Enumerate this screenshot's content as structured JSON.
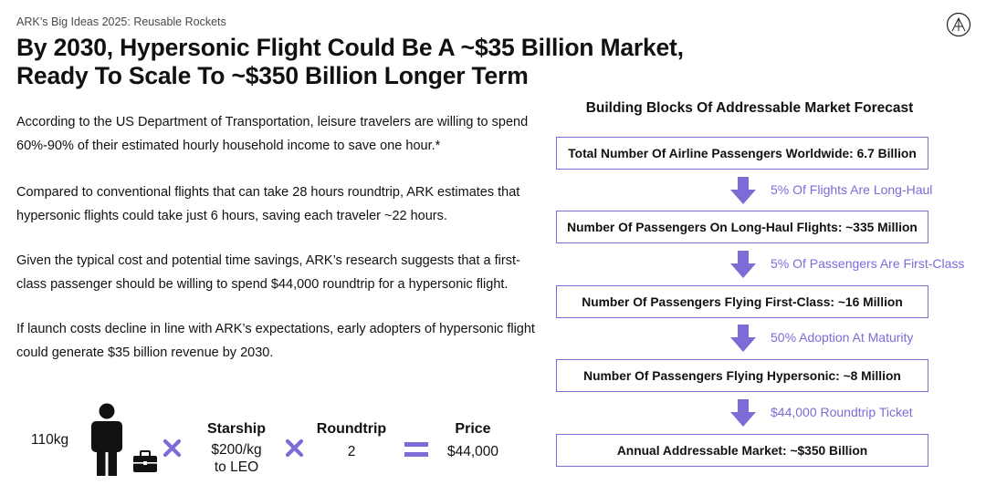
{
  "header": {
    "kicker": "ARK’s Big Ideas 2025: Reusable Rockets",
    "title_line1": "By 2030, Hypersonic Flight Could Be A ~$35 Billion Market,",
    "title_line2": "Ready To Scale To ~$350 Billion Longer Term"
  },
  "logo": {
    "icon": "ark-logo-icon"
  },
  "paragraphs": {
    "p1": "According to the US Department of Transportation, leisure travelers are willing to spend 60%-90% of their estimated hourly household income to save one hour.*",
    "p2": "Compared to conventional flights that can take 28 hours roundtrip, ARK estimates that hypersonic flights could take just 6 hours, saving each traveler ~22 hours.",
    "p3": "Given the typical cost and potential time savings, ARK’s research suggests that a first-class passenger should be willing to spend $44,000 roundtrip for a hypersonic flight.",
    "p4": "If launch costs decline in line with ARK’s expectations, early adopters of hypersonic flight could generate $35 billion revenue by 2030."
  },
  "equation": {
    "weight": "110kg",
    "starship_head": "Starship",
    "starship_line1": "$200/kg",
    "starship_line2": "to LEO",
    "roundtrip_head": "Roundtrip",
    "roundtrip_value": "2",
    "price_head": "Price",
    "price_value": "$44,000",
    "icons": [
      "person-icon",
      "briefcase-icon",
      "multiply-icon",
      "equals-icon"
    ]
  },
  "forecast": {
    "title": "Building Blocks Of Addressable Market Forecast",
    "boxes": [
      "Total Number Of Airline Passengers Worldwide: 6.7 Billion",
      "Number Of Passengers On Long-Haul Flights: ~335 Million",
      "Number Of Passengers Flying First-Class: ~16 Million",
      "Number Of Passengers Flying Hypersonic: ~8 Million",
      "Annual Addressable Market: ~$350 Billion"
    ],
    "steps": [
      "5% Of Flights Are Long-Haul",
      "5% Of Passengers Are First-Class",
      "50% Adoption At Maturity",
      "$44,000 Roundtrip Ticket"
    ]
  },
  "colors": {
    "accent": "#7b6cd6",
    "text": "#111111",
    "muted": "#4a4a4a"
  }
}
